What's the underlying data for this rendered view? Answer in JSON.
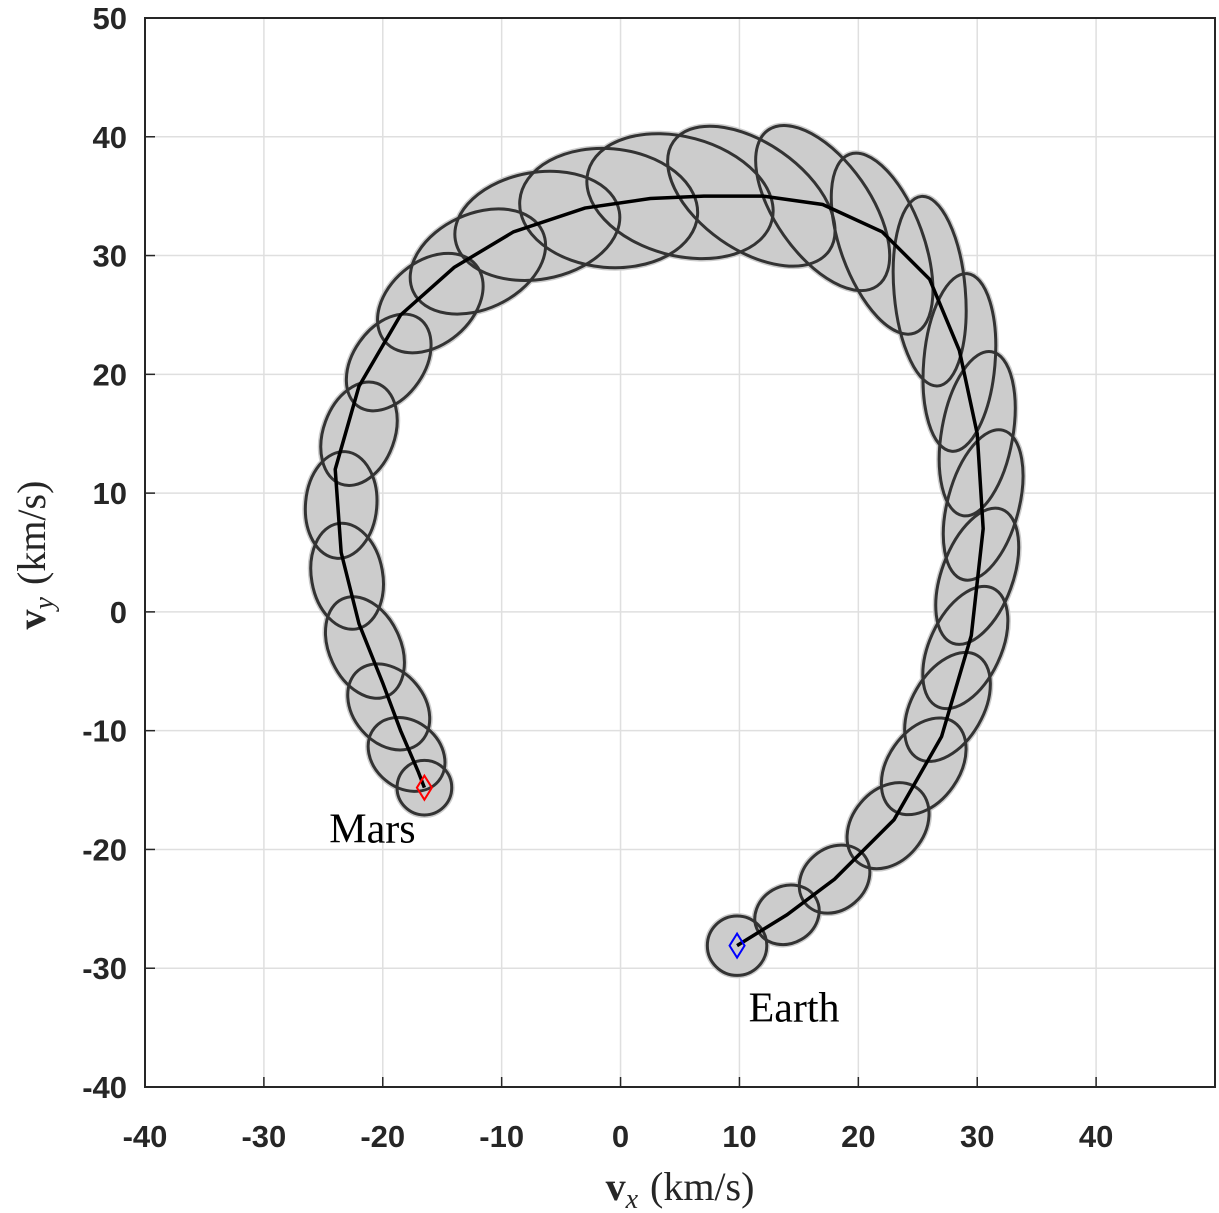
{
  "chart_data": {
    "type": "line",
    "xlabel": {
      "symbol": "v",
      "subscript": "x",
      "unit": "(km/s)"
    },
    "ylabel": {
      "symbol": "v",
      "subscript": "y",
      "unit": "(km/s)"
    },
    "xlim": [
      -40,
      50
    ],
    "ylim": [
      -40,
      50
    ],
    "xticks": [
      -40,
      -30,
      -20,
      -10,
      0,
      10,
      20,
      30,
      40
    ],
    "yticks": [
      -40,
      -30,
      -20,
      -10,
      0,
      10,
      20,
      30,
      40,
      50
    ],
    "grid": true,
    "series": [
      {
        "color": "#000000",
        "x": [
          9.8,
          14,
          18,
          23,
          27,
          29.5,
          30.5,
          30,
          28.5,
          26,
          22,
          17,
          12,
          7,
          2.5,
          -3,
          -9,
          -14,
          -18.5,
          -22,
          -24,
          -23.5,
          -22,
          -20,
          -18.5,
          -17,
          -16.5
        ],
        "values": [
          -28.1,
          -25.5,
          -22.5,
          -17.5,
          -10.5,
          -2,
          7,
          15,
          22,
          28,
          32,
          34.3,
          35,
          35,
          34.8,
          34,
          32,
          29,
          25,
          19,
          12,
          5,
          -1,
          -6,
          -10,
          -13.5,
          -14.8
        ]
      }
    ],
    "ellipse_color": "#333333",
    "ellipse_fill": "#cccccc",
    "ellipses": [
      {
        "cx": 9.8,
        "cy": -28.1,
        "a": 2.5,
        "b": 2.5,
        "angle": 0
      },
      {
        "cx": 14,
        "cy": -25.5,
        "a": 2.8,
        "b": 2.4,
        "angle": 30
      },
      {
        "cx": 18,
        "cy": -22.5,
        "a": 3.2,
        "b": 2.6,
        "angle": 40
      },
      {
        "cx": 22.5,
        "cy": -18,
        "a": 4,
        "b": 3,
        "angle": 50
      },
      {
        "cx": 25.5,
        "cy": -13,
        "a": 4.5,
        "b": 3,
        "angle": 55
      },
      {
        "cx": 27.5,
        "cy": -8,
        "a": 5,
        "b": 3,
        "angle": 60
      },
      {
        "cx": 29,
        "cy": -3,
        "a": 5.5,
        "b": 3,
        "angle": 65
      },
      {
        "cx": 30,
        "cy": 3,
        "a": 6,
        "b": 3,
        "angle": 70
      },
      {
        "cx": 30.5,
        "cy": 9,
        "a": 6.5,
        "b": 3,
        "angle": 75
      },
      {
        "cx": 30,
        "cy": 15,
        "a": 7,
        "b": 3,
        "angle": 80
      },
      {
        "cx": 28.5,
        "cy": 21,
        "a": 7.5,
        "b": 3,
        "angle": 85
      },
      {
        "cx": 26,
        "cy": 27,
        "a": 8,
        "b": 3,
        "angle": 95
      },
      {
        "cx": 22,
        "cy": 31,
        "a": 8,
        "b": 3.5,
        "angle": 110
      },
      {
        "cx": 17,
        "cy": 34,
        "a": 8,
        "b": 4,
        "angle": 125
      },
      {
        "cx": 11,
        "cy": 35,
        "a": 8,
        "b": 4.5,
        "angle": 145
      },
      {
        "cx": 5,
        "cy": 35,
        "a": 8,
        "b": 5,
        "angle": 165
      },
      {
        "cx": -1,
        "cy": 34,
        "a": 7.5,
        "b": 5,
        "angle": 175
      },
      {
        "cx": -7,
        "cy": 32.5,
        "a": 7,
        "b": 4.5,
        "angle": 10
      },
      {
        "cx": -12,
        "cy": 29.5,
        "a": 6,
        "b": 4,
        "angle": 25
      },
      {
        "cx": -16,
        "cy": 26,
        "a": 5,
        "b": 3.5,
        "angle": 40
      },
      {
        "cx": -19.5,
        "cy": 21,
        "a": 4.5,
        "b": 3,
        "angle": 55
      },
      {
        "cx": -22,
        "cy": 15,
        "a": 4.5,
        "b": 3,
        "angle": 70
      },
      {
        "cx": -23.5,
        "cy": 9,
        "a": 4.5,
        "b": 3,
        "angle": 85
      },
      {
        "cx": -23,
        "cy": 3,
        "a": 4.5,
        "b": 3,
        "angle": 100
      },
      {
        "cx": -21.5,
        "cy": -3,
        "a": 4.5,
        "b": 3,
        "angle": 115
      },
      {
        "cx": -19.5,
        "cy": -8,
        "a": 4,
        "b": 3,
        "angle": 130
      },
      {
        "cx": -18,
        "cy": -12,
        "a": 3.5,
        "b": 2.8,
        "angle": 140
      },
      {
        "cx": -16.5,
        "cy": -14.8,
        "a": 2.3,
        "b": 2.3,
        "angle": 0
      }
    ],
    "markers": [
      {
        "name": "Mars",
        "x": -16.5,
        "y": -14.8,
        "color": "#ff0000"
      },
      {
        "name": "Earth",
        "x": 9.8,
        "y": -28.1,
        "color": "#0000ff"
      }
    ]
  }
}
